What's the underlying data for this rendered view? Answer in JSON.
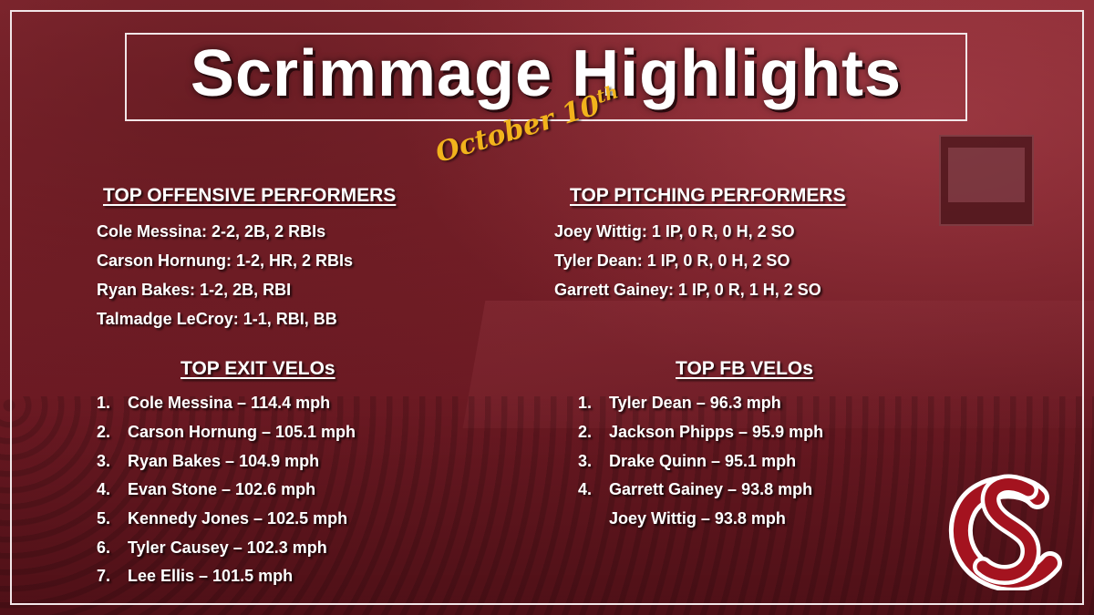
{
  "title": "Scrimmage Highlights",
  "date": {
    "main": "October 10",
    "suffix": "th"
  },
  "offense": {
    "heading": "TOP OFFENSIVE PERFORMERS",
    "items": [
      "Cole Messina: 2-2, 2B, 2 RBIs",
      "Carson Hornung: 1-2, HR, 2 RBIs",
      "Ryan Bakes: 1-2, 2B, RBI",
      "Talmadge LeCroy: 1-1, RBI, BB"
    ]
  },
  "pitching": {
    "heading": "TOP PITCHING PERFORMERS",
    "items": [
      "Joey Wittig: 1 IP, 0 R, 0 H, 2 SO",
      "Tyler Dean: 1 IP, 0 R, 0 H, 2 SO",
      "Garrett Gainey: 1 IP, 0 R, 1 H, 2 SO"
    ]
  },
  "exit_velos": {
    "heading": "TOP EXIT VELOs",
    "items": [
      {
        "rank": "1.",
        "text": "Cole Messina – 114.4 mph"
      },
      {
        "rank": "2.",
        "text": "Carson Hornung – 105.1 mph"
      },
      {
        "rank": "3.",
        "text": "Ryan Bakes – 104.9 mph"
      },
      {
        "rank": "4.",
        "text": "Evan Stone – 102.6 mph"
      },
      {
        "rank": "5.",
        "text": "Kennedy Jones – 102.5 mph"
      },
      {
        "rank": "6.",
        "text": "Tyler Causey – 102.3 mph"
      },
      {
        "rank": "7.",
        "text": "Lee Ellis – 101.5 mph"
      }
    ]
  },
  "fb_velos": {
    "heading": "TOP FB VELOs",
    "items": [
      {
        "rank": "1.",
        "text": "Tyler Dean – 96.3 mph"
      },
      {
        "rank": "2.",
        "text": "Jackson Phipps – 95.9 mph"
      },
      {
        "rank": "3.",
        "text": "Drake Quinn – 95.1 mph"
      },
      {
        "rank": "4.",
        "text": "Garrett Gainey – 93.8 mph"
      },
      {
        "rank": "",
        "text": "Joey Wittig – 93.8 mph"
      }
    ]
  },
  "logo_icon": "sc-monogram-icon",
  "colors": {
    "garnet": "#7a2029",
    "gold": "#f2b31c",
    "white": "#ffffff"
  }
}
